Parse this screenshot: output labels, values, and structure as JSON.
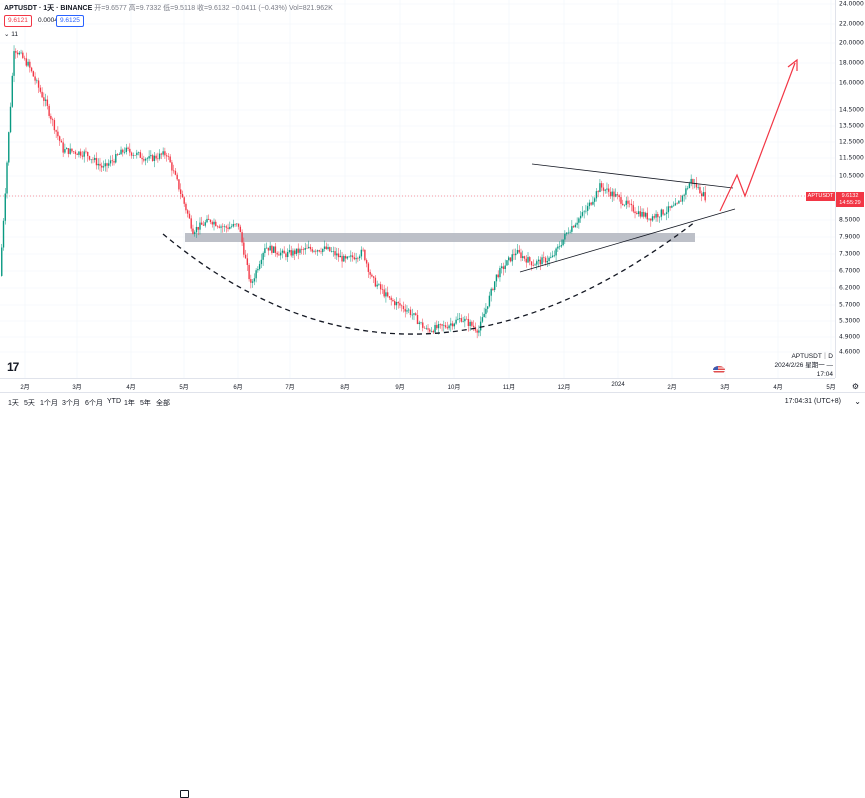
{
  "header": {
    "symbol": "APTUSDT · 1天 · BINANCE",
    "ohlc": "开=9.6577  高=9.7332  低=9.5118  收=9.6132  −0.0411 (−0.43%)  Vol=821.962K"
  },
  "trade": {
    "sell_price": "9.6121",
    "spread": "0.0004",
    "buy_price": "9.6125"
  },
  "indicator_toggle": "⌄ 11",
  "price_axis": {
    "ticks": [
      "24.0000",
      "22.0000",
      "20.0000",
      "18.0000",
      "16.0000",
      "14.5000",
      "13.5000",
      "12.5000",
      "11.5000",
      "10.5000",
      "9.5000",
      "8.5000",
      "7.9000",
      "7.3000",
      "6.7000",
      "6.2000",
      "5.7000",
      "5.3000",
      "4.9000",
      "4.6000"
    ],
    "last_price_tag": [
      "APTUSDT",
      "9.6132",
      "14:55:29"
    ]
  },
  "time_axis": {
    "ticks": [
      "2月",
      "3月",
      "4月",
      "5月",
      "6月",
      "7月",
      "8月",
      "9月",
      "10月",
      "11月",
      "12月",
      "2024",
      "2月",
      "3月",
      "4月",
      "5月"
    ]
  },
  "watermark": {
    "title": "APTUSDT｜D",
    "date": "2024/2/26 星期一 — 17:04"
  },
  "bottom_bar": {
    "ranges": [
      "1天",
      "5天",
      "1个月",
      "3个月",
      "6个月",
      "YTD",
      "1年",
      "5年",
      "全部"
    ],
    "clock": "17:04:31 (UTC+8)",
    "timezone": "⌄"
  },
  "colors": {
    "up": "#089981",
    "down": "#f23645",
    "accent": "#2962ff",
    "zone": "#b2b5be"
  },
  "chart_data": {
    "type": "candlestick",
    "x_range": [
      "2023-01-20",
      "2024-05-10"
    ],
    "y_range_axis": [
      4.6,
      24.0
    ],
    "y_scale": "log",
    "key_levels": {
      "resistance_zone": [
        7.6,
        8.1
      ],
      "last_price": 9.6132
    },
    "path_points": [
      [
        "2023-01-20",
        6.6
      ],
      [
        "2023-01-28",
        19.5
      ],
      [
        "2023-02-05",
        18.0
      ],
      [
        "2023-02-15",
        15.0
      ],
      [
        "2023-02-25",
        12.0
      ],
      [
        "2023-03-10",
        11.8
      ],
      [
        "2023-03-20",
        11.0
      ],
      [
        "2023-04-01",
        12.0
      ],
      [
        "2023-04-15",
        11.5
      ],
      [
        "2023-04-25",
        11.8
      ],
      [
        "2023-05-01",
        10.3
      ],
      [
        "2023-05-10",
        8.2
      ],
      [
        "2023-05-20",
        8.6
      ],
      [
        "2023-05-28",
        8.3
      ],
      [
        "2023-06-05",
        8.4
      ],
      [
        "2023-06-12",
        6.3
      ],
      [
        "2023-06-20",
        7.6
      ],
      [
        "2023-07-01",
        7.3
      ],
      [
        "2023-07-15",
        7.5
      ],
      [
        "2023-07-25",
        7.5
      ],
      [
        "2023-08-05",
        7.1
      ],
      [
        "2023-08-15",
        7.4
      ],
      [
        "2023-08-20",
        6.5
      ],
      [
        "2023-08-30",
        5.9
      ],
      [
        "2023-09-10",
        5.6
      ],
      [
        "2023-09-20",
        5.1
      ],
      [
        "2023-10-01",
        5.2
      ],
      [
        "2023-10-10",
        5.4
      ],
      [
        "2023-10-20",
        5.1
      ],
      [
        "2023-10-30",
        6.6
      ],
      [
        "2023-11-10",
        7.4
      ],
      [
        "2023-11-20",
        7.0
      ],
      [
        "2023-12-01",
        7.2
      ],
      [
        "2023-12-10",
        8.2
      ],
      [
        "2023-12-20",
        9.0
      ],
      [
        "2023-12-28",
        10.1
      ],
      [
        "2024-01-05",
        9.7
      ],
      [
        "2024-01-15",
        9.1
      ],
      [
        "2024-01-25",
        8.7
      ],
      [
        "2024-02-01",
        8.9
      ],
      [
        "2024-02-10",
        9.2
      ],
      [
        "2024-02-18",
        10.4
      ],
      [
        "2024-02-26",
        9.61
      ]
    ]
  }
}
